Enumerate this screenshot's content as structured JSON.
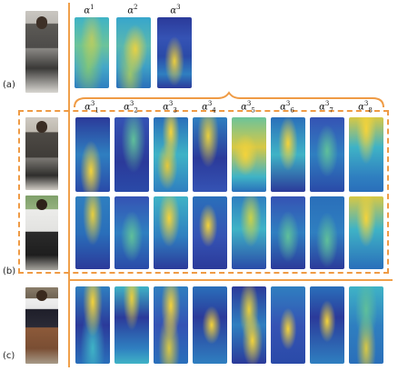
{
  "figure": {
    "row_labels": [
      "(a)",
      "(b)",
      "(c)"
    ],
    "top_maps": [
      {
        "base": "α",
        "sup": "1",
        "sub": ""
      },
      {
        "base": "α",
        "sup": "2",
        "sub": ""
      },
      {
        "base": "α",
        "sup": "3",
        "sub": ""
      }
    ],
    "part_maps": [
      {
        "base": "α",
        "sup": "3",
        "sub": "1"
      },
      {
        "base": "α",
        "sup": "3",
        "sub": "2"
      },
      {
        "base": "α",
        "sup": "3",
        "sub": "3"
      },
      {
        "base": "α",
        "sup": "3",
        "sub": "4"
      },
      {
        "base": "α",
        "sup": "3",
        "sub": "5"
      },
      {
        "base": "α",
        "sup": "3",
        "sub": "6"
      },
      {
        "base": "α",
        "sup": "3",
        "sub": "7"
      },
      {
        "base": "α",
        "sup": "3",
        "sub": "8"
      }
    ],
    "colors": {
      "accent": "#ef9b45",
      "map_low": "#2b3a9a",
      "map_mid": "#2aa3c9",
      "map_high": "#f4d33a"
    }
  }
}
